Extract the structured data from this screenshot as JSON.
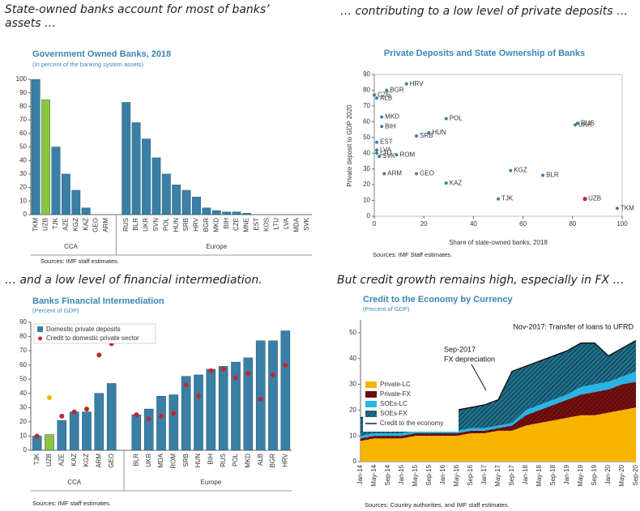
{
  "chart_data": [
    {
      "type": "bar",
      "caption": "State-owned banks account for most of banks’ assets …",
      "title": "Government Owned Banks, 2018",
      "subtitle": "(In percent of the banking system assets)",
      "categories": [
        "TKM",
        "UZB",
        "TJK",
        "AZE",
        "KGZ",
        "KAZ",
        "GEO",
        "ARM",
        null,
        "RUS",
        "BLR",
        "UKR",
        "SVN",
        "POL",
        "HUN",
        "SRB",
        "HRV",
        "BGR",
        "MKD",
        "BIH",
        "CZE",
        "MNE",
        "EST",
        "KOS",
        "LTU",
        "LVA",
        "MDA",
        "SVK"
      ],
      "values": [
        100,
        85,
        50,
        30,
        18,
        5,
        0,
        0,
        null,
        83,
        68,
        56,
        42,
        30,
        22,
        18,
        13,
        5,
        3,
        2,
        2,
        1,
        0,
        0,
        0,
        0,
        0,
        0
      ],
      "groups": [
        "CCA",
        "Europe"
      ],
      "color": "#3a7fa5",
      "highlight": "UZB",
      "highlight_color": "#8cc63f",
      "ylim": [
        0,
        100
      ],
      "yticks": [
        0,
        10,
        20,
        30,
        40,
        50,
        60,
        70,
        80,
        90,
        100
      ],
      "grid": false,
      "source": "Sources: IMF staff estimates."
    },
    {
      "type": "scatter",
      "caption": "… contributing to a low level of private deposits …",
      "title": "Private Deposits and State Ownership of Banks",
      "x_label": "Share of state-owned banks, 2018",
      "y_label": "Private deposit to GDP 2020",
      "labels": [
        "HRV",
        "BGR",
        "CZE",
        "ALB",
        "MKD",
        "BIH",
        "EST",
        "LVA",
        "LTU",
        "SVK",
        "ROM",
        "SRB",
        "HUN",
        "POL",
        "ARM",
        "GEO",
        "KAZ",
        "TJK",
        "KGZ",
        "BLR",
        "RUS",
        "UKR",
        "UZB",
        "TKM"
      ],
      "x": [
        13,
        5,
        0,
        1,
        3,
        3,
        1,
        1,
        1,
        2,
        9,
        17,
        22,
        29,
        4,
        17,
        29,
        50,
        55,
        68,
        82,
        81,
        85,
        98
      ],
      "values": [
        84,
        80,
        77,
        75,
        63,
        57,
        47,
        42,
        40,
        38,
        39,
        51,
        53,
        62,
        27,
        27,
        21,
        11,
        29,
        26,
        59,
        58,
        11,
        5
      ],
      "color": "#3a7fa5",
      "highlight": "UZB",
      "highlight_color": "#c0272d",
      "xlim": [
        0,
        100
      ],
      "xticks": [
        0,
        20,
        40,
        60,
        80,
        100
      ],
      "ylim": [
        0,
        90
      ],
      "yticks": [
        0,
        10,
        20,
        30,
        40,
        50,
        60,
        70,
        80,
        90
      ],
      "source": "Sources: IMF Staff estimates."
    },
    {
      "type": "combo",
      "caption": "… and a low level of financial intermediation.",
      "title": "Banks Financial Intermediation",
      "subtitle": "(Percent of GDP)",
      "categories": [
        "TJK",
        "UZB",
        "AZE",
        "KAZ",
        "KGZ",
        "ARM",
        "GEO",
        null,
        "BLR",
        "UKR",
        "MDA",
        "ROM",
        "SRB",
        "HUN",
        "BIH",
        "RUS",
        "POL",
        "MKD",
        "ALB",
        "BGR",
        "HRV"
      ],
      "series": [
        {
          "name": "Domestic private deposits",
          "color": "#3a7fa5",
          "highlight_color": "#8cc63f",
          "values": [
            10,
            11,
            21,
            27,
            27,
            40,
            47,
            null,
            25,
            29,
            38,
            39,
            52,
            53,
            57,
            59,
            62,
            65,
            77,
            77,
            84
          ]
        },
        {
          "name": "Credit to domestic private sector",
          "color": "#c0272d",
          "highlight_color": "#f6b400",
          "values": [
            10,
            37,
            24,
            27,
            29,
            67,
            75,
            null,
            25,
            22,
            24,
            26,
            46,
            38,
            56,
            57,
            51,
            54,
            36,
            53,
            60
          ]
        }
      ],
      "groups": [
        "CCA",
        "Europe"
      ],
      "highlight": "UZB",
      "ylim": [
        0,
        90
      ],
      "yticks": [
        0,
        10,
        20,
        30,
        40,
        50,
        60,
        70,
        80,
        90
      ],
      "source": "Sources: IMF staff estimates."
    },
    {
      "type": "area",
      "caption": "But credit growth remains high, especially in FX …",
      "title": "Credit to the Economy by Currency",
      "subtitle": "(Percent of GDP)",
      "x": [
        "Jan-14",
        "May-14",
        "Sep-14",
        "Jan-15",
        "May-15",
        "Sep-15",
        "Jan-16",
        "May-16",
        "Sep-16",
        "Jan-17",
        "May-17",
        "Sep-17",
        "Jan-18",
        "May-18",
        "Sep-18",
        "Jan-19",
        "May-19",
        "Sep-19",
        "Jan-20",
        "May-20",
        "Sep-20"
      ],
      "series": [
        {
          "name": "Private-LC",
          "color": "#f6b400",
          "hatch": false,
          "values": [
            8,
            9,
            9,
            9,
            10,
            10,
            10,
            10,
            11,
            11,
            12,
            12,
            14,
            15,
            16,
            17,
            18,
            18,
            19,
            20,
            21
          ]
        },
        {
          "name": "Private-FX",
          "color": "#7a1010",
          "hatch": true,
          "values": [
            1,
            1,
            1,
            1,
            1,
            1,
            1,
            1,
            1,
            1,
            1,
            2,
            4,
            5,
            6,
            7,
            8,
            9,
            9,
            10,
            10
          ]
        },
        {
          "name": "SOEs-LC",
          "color": "#2ab4e6",
          "hatch": false,
          "values": [
            1,
            1,
            1,
            1,
            1,
            1,
            1,
            1,
            1,
            1,
            1,
            1,
            2,
            2,
            2,
            2,
            3,
            3,
            3,
            3,
            4
          ]
        },
        {
          "name": "SOEs-FX",
          "color": "#1f6f8b",
          "hatch": true,
          "values": [
            7,
            7,
            7,
            8,
            8,
            7,
            8,
            8,
            8,
            9,
            10,
            20,
            17,
            17,
            17,
            17,
            17,
            16,
            10,
            11,
            12
          ]
        }
      ],
      "line": {
        "name": "Credit to the economy",
        "color": "#111111",
        "values": [
          17,
          18,
          18,
          19,
          20,
          19,
          20,
          20,
          21,
          22,
          24,
          35,
          37,
          39,
          41,
          43,
          46,
          46,
          41,
          44,
          47
        ]
      },
      "annotations": [
        "Nov-2017: Transfer of loans to UFRD",
        "Sep-2017",
        "FX depreciation"
      ],
      "ylim": [
        0,
        55
      ],
      "yticks": [
        0,
        10,
        20,
        30,
        40,
        50
      ],
      "source": "Sources: Country authorities, and IMF staff estimates."
    }
  ]
}
